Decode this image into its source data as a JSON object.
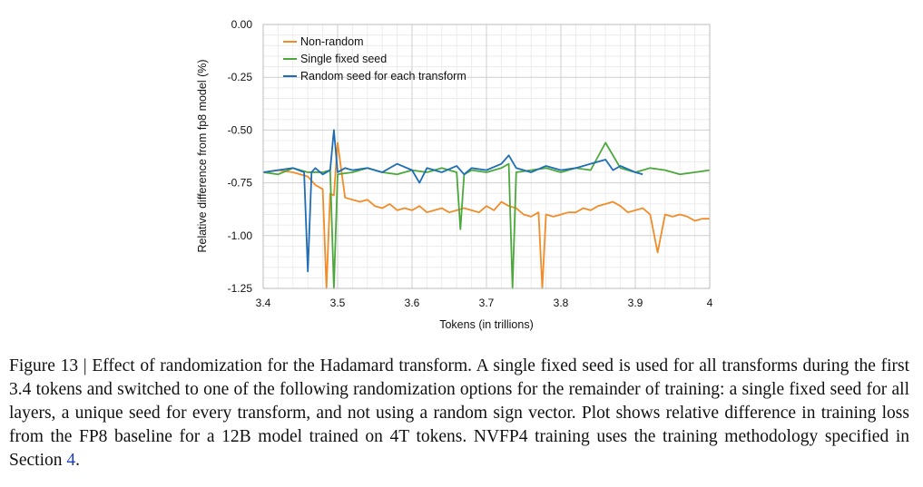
{
  "chart_data": {
    "type": "line",
    "title": "",
    "xlabel": "Tokens (in trillions)",
    "ylabel": "Relative difference from fp8 model (%)",
    "xlim": [
      3.4,
      4.0
    ],
    "ylim": [
      -1.25,
      0.0
    ],
    "xticks": [
      "3.4",
      "3.5",
      "3.6",
      "3.7",
      "3.8",
      "3.9",
      "4"
    ],
    "yticks": [
      "0.00",
      "-0.25",
      "-0.50",
      "-0.75",
      "-1.00",
      "-1.25"
    ],
    "grid": true,
    "legend_position": "top-left",
    "series": [
      {
        "name": "Non-random",
        "color": "#f28c28",
        "x": [
          3.4,
          3.42,
          3.44,
          3.46,
          3.47,
          3.48,
          3.485,
          3.49,
          3.495,
          3.5,
          3.51,
          3.52,
          3.53,
          3.54,
          3.55,
          3.56,
          3.57,
          3.58,
          3.59,
          3.6,
          3.61,
          3.62,
          3.63,
          3.64,
          3.65,
          3.66,
          3.67,
          3.68,
          3.69,
          3.7,
          3.71,
          3.72,
          3.73,
          3.74,
          3.75,
          3.76,
          3.77,
          3.775,
          3.78,
          3.79,
          3.8,
          3.81,
          3.82,
          3.83,
          3.84,
          3.85,
          3.86,
          3.87,
          3.88,
          3.89,
          3.9,
          3.91,
          3.92,
          3.93,
          3.94,
          3.95,
          3.96,
          3.97,
          3.98,
          3.99,
          4.0
        ],
        "y": [
          -0.7,
          -0.69,
          -0.7,
          -0.72,
          -0.76,
          -0.78,
          -1.25,
          -0.8,
          -0.81,
          -0.56,
          -0.82,
          -0.83,
          -0.84,
          -0.83,
          -0.86,
          -0.87,
          -0.85,
          -0.88,
          -0.87,
          -0.88,
          -0.86,
          -0.89,
          -0.88,
          -0.87,
          -0.89,
          -0.88,
          -0.87,
          -0.88,
          -0.89,
          -0.86,
          -0.88,
          -0.84,
          -0.86,
          -0.87,
          -0.9,
          -0.91,
          -0.89,
          -1.25,
          -0.9,
          -0.91,
          -0.9,
          -0.89,
          -0.89,
          -0.87,
          -0.88,
          -0.86,
          -0.85,
          -0.84,
          -0.86,
          -0.89,
          -0.88,
          -0.87,
          -0.9,
          -1.08,
          -0.9,
          -0.91,
          -0.9,
          -0.91,
          -0.93,
          -0.92,
          -0.92
        ]
      },
      {
        "name": "Single fixed seed",
        "color": "#4ca83c",
        "x": [
          3.4,
          3.42,
          3.44,
          3.46,
          3.48,
          3.49,
          3.495,
          3.5,
          3.52,
          3.54,
          3.56,
          3.58,
          3.6,
          3.62,
          3.64,
          3.66,
          3.665,
          3.67,
          3.68,
          3.7,
          3.72,
          3.73,
          3.735,
          3.74,
          3.76,
          3.78,
          3.8,
          3.82,
          3.84,
          3.86,
          3.88,
          3.9,
          3.92,
          3.94,
          3.96,
          3.98,
          4.0
        ],
        "y": [
          -0.7,
          -0.71,
          -0.68,
          -0.7,
          -0.7,
          -0.69,
          -1.25,
          -0.71,
          -0.7,
          -0.68,
          -0.7,
          -0.71,
          -0.69,
          -0.7,
          -0.68,
          -0.7,
          -0.97,
          -0.71,
          -0.69,
          -0.7,
          -0.68,
          -0.66,
          -1.25,
          -0.7,
          -0.69,
          -0.68,
          -0.7,
          -0.68,
          -0.69,
          -0.56,
          -0.68,
          -0.7,
          -0.68,
          -0.69,
          -0.71,
          -0.7,
          -0.69
        ]
      },
      {
        "name": "Random seed for each transform",
        "color": "#1f6db5",
        "x": [
          3.4,
          3.42,
          3.44,
          3.455,
          3.46,
          3.465,
          3.47,
          3.48,
          3.49,
          3.495,
          3.5,
          3.51,
          3.52,
          3.54,
          3.56,
          3.58,
          3.6,
          3.61,
          3.62,
          3.64,
          3.66,
          3.67,
          3.68,
          3.7,
          3.72,
          3.73,
          3.74,
          3.76,
          3.78,
          3.8,
          3.82,
          3.84,
          3.86,
          3.87,
          3.88,
          3.9,
          3.91
        ],
        "y": [
          -0.7,
          -0.69,
          -0.68,
          -0.7,
          -1.17,
          -0.7,
          -0.68,
          -0.71,
          -0.69,
          -0.5,
          -0.7,
          -0.68,
          -0.69,
          -0.68,
          -0.7,
          -0.66,
          -0.69,
          -0.75,
          -0.68,
          -0.7,
          -0.67,
          -0.71,
          -0.68,
          -0.69,
          -0.66,
          -0.62,
          -0.68,
          -0.7,
          -0.67,
          -0.69,
          -0.68,
          -0.66,
          -0.64,
          -0.69,
          -0.67,
          -0.7,
          -0.71
        ]
      }
    ]
  },
  "caption": {
    "text": "Figure 13 | Effect of randomization for the Hadamard transform. A single fixed seed is used for all transforms during the first 3.4 tokens and switched to one of the following randomization options for the remainder of training: a single fixed seed for all layers, a unique seed for every transform, and not using a random sign vector. Plot shows relative difference in training loss from the FP8 baseline for a 12B model trained on 4T tokens. NVFP4 training uses the training methodology specified in Section ",
    "ref": "4",
    "end": "."
  }
}
